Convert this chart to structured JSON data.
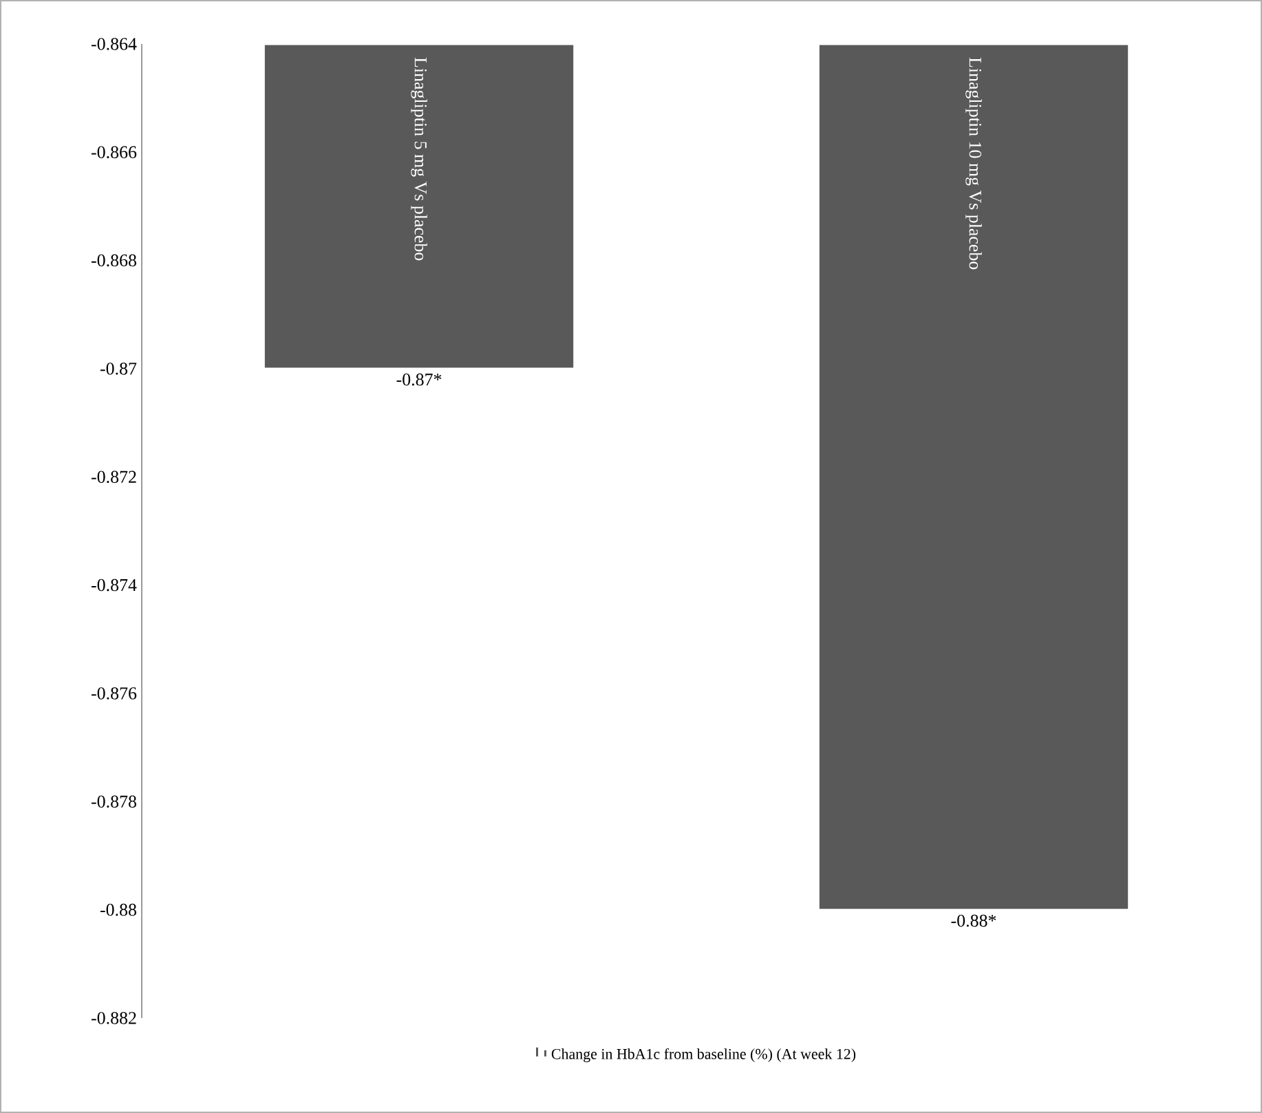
{
  "chart_data": {
    "type": "bar",
    "categories": [
      "Linagliptin 5 mg  Vs placebo",
      "Linagliptin 10 mg  Vs placebo"
    ],
    "series": [
      {
        "name": "Change in HbA1c from baseline (%) (At week 12)",
        "color": "#595959",
        "values": [
          -0.87,
          -0.88
        ],
        "value_labels": [
          "-0.87*",
          "-0.88*"
        ]
      }
    ],
    "ylim": [
      -0.882,
      -0.864
    ],
    "yticks": [
      -0.882,
      -0.88,
      -0.878,
      -0.876,
      -0.874,
      -0.872,
      -0.87,
      -0.868,
      -0.866,
      -0.864
    ],
    "grid": false,
    "legend": "bottom"
  }
}
